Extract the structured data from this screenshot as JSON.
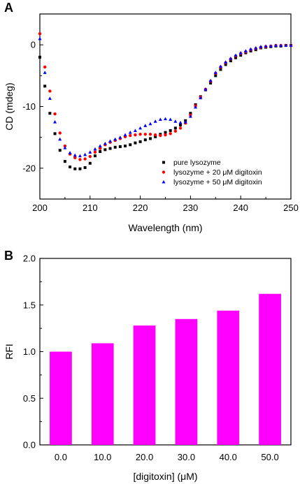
{
  "chart_data": [
    {
      "panel": "A",
      "type": "scatter",
      "xlabel": "Wavelength (nm)",
      "ylabel": "CD (mdeg)",
      "xlim": [
        200,
        250
      ],
      "ylim": [
        -25,
        5
      ],
      "xticks": [
        200,
        210,
        220,
        230,
        240,
        250
      ],
      "yticks": [
        -20,
        -10,
        0
      ],
      "legend_position": "bottom-right",
      "series": [
        {
          "name": "pure lysozyme",
          "color": "#000000",
          "marker": "square",
          "x": [
            200,
            201,
            202,
            203,
            204,
            205,
            206,
            207,
            208,
            209,
            210,
            211,
            212,
            213,
            214,
            215,
            216,
            217,
            218,
            219,
            220,
            221,
            222,
            223,
            224,
            225,
            226,
            227,
            228,
            229,
            230,
            231,
            232,
            233,
            234,
            235,
            236,
            237,
            238,
            239,
            240,
            241,
            242,
            243,
            244,
            245,
            246,
            247,
            248,
            249,
            250
          ],
          "y": [
            -2.0,
            -6.7,
            -11.1,
            -14.4,
            -17.1,
            -18.9,
            -19.8,
            -20.1,
            -20.1,
            -19.9,
            -19.2,
            -18.0,
            -17.3,
            -17.0,
            -16.8,
            -16.6,
            -16.5,
            -16.4,
            -16.2,
            -15.9,
            -15.7,
            -15.4,
            -15.2,
            -14.9,
            -14.5,
            -14.2,
            -13.9,
            -13.5,
            -13.0,
            -12.3,
            -11.1,
            -9.7,
            -8.4,
            -7.3,
            -6.2,
            -5.0,
            -4.0,
            -3.2,
            -2.6,
            -2.1,
            -1.7,
            -1.3,
            -1.0,
            -0.8,
            -0.5,
            -0.4,
            -0.3,
            -0.2,
            -0.2,
            -0.1,
            -0.1
          ]
        },
        {
          "name": "lysozyme + 20 μM digitoxin",
          "color": "#ff0000",
          "marker": "circle",
          "x": [
            200,
            201,
            202,
            203,
            204,
            205,
            206,
            207,
            208,
            209,
            210,
            211,
            212,
            213,
            214,
            215,
            216,
            217,
            218,
            219,
            220,
            221,
            222,
            223,
            224,
            225,
            226,
            227,
            228,
            229,
            230,
            231,
            232,
            233,
            234,
            235,
            236,
            237,
            238,
            239,
            240,
            241,
            242,
            243,
            244,
            245,
            246,
            247,
            248,
            249,
            250
          ],
          "y": [
            1.8,
            -3.6,
            -7.5,
            -11.2,
            -14.3,
            -16.4,
            -17.7,
            -18.3,
            -18.6,
            -18.5,
            -18.1,
            -17.4,
            -16.8,
            -16.2,
            -15.8,
            -15.5,
            -15.2,
            -14.9,
            -14.7,
            -14.6,
            -14.5,
            -14.5,
            -14.5,
            -14.6,
            -14.7,
            -14.6,
            -14.4,
            -14.0,
            -13.5,
            -12.7,
            -11.4,
            -9.9,
            -8.5,
            -7.2,
            -5.9,
            -4.6,
            -3.6,
            -2.9,
            -2.3,
            -1.8,
            -1.4,
            -1.1,
            -0.8,
            -0.6,
            -0.4,
            -0.3,
            -0.2,
            -0.1,
            -0.1,
            -0.1,
            -0.1
          ]
        },
        {
          "name": "lysozyme + 50 μM digitoxin",
          "color": "#0000ff",
          "marker": "triangle",
          "x": [
            200,
            201,
            202,
            203,
            204,
            205,
            206,
            207,
            208,
            209,
            210,
            211,
            212,
            213,
            214,
            215,
            216,
            217,
            218,
            219,
            220,
            221,
            222,
            223,
            224,
            225,
            226,
            227,
            228,
            229,
            230,
            231,
            232,
            233,
            234,
            235,
            236,
            237,
            238,
            239,
            240,
            241,
            242,
            243,
            244,
            245,
            246,
            247,
            248,
            249,
            250
          ],
          "y": [
            1.0,
            -4.5,
            -8.7,
            -12.5,
            -15.3,
            -16.7,
            -17.5,
            -17.9,
            -18.0,
            -17.8,
            -17.4,
            -16.9,
            -16.4,
            -16.0,
            -15.6,
            -15.3,
            -15.0,
            -14.6,
            -14.2,
            -13.9,
            -13.5,
            -13.1,
            -12.8,
            -12.4,
            -12.1,
            -12.0,
            -12.1,
            -12.4,
            -12.6,
            -12.5,
            -11.6,
            -10.1,
            -8.6,
            -7.2,
            -5.8,
            -4.5,
            -3.5,
            -2.8,
            -2.2,
            -1.7,
            -1.3,
            -1.0,
            -0.7,
            -0.5,
            -0.3,
            -0.2,
            -0.2,
            -0.1,
            -0.1,
            -0.1,
            -0.1
          ]
        }
      ]
    },
    {
      "panel": "B",
      "type": "bar",
      "xlabel": "[digitoxin] (μM)",
      "ylabel": "RFI",
      "ylim": [
        0,
        2.0
      ],
      "yticks": [
        "0.0",
        "0.5",
        "1.0",
        "1.5",
        "2.0"
      ],
      "color": "#ff00ff",
      "categories": [
        "0.0",
        "10.0",
        "20.0",
        "30.0",
        "40.0",
        "50.0"
      ],
      "values": [
        1.0,
        1.09,
        1.28,
        1.35,
        1.44,
        1.62
      ]
    }
  ]
}
